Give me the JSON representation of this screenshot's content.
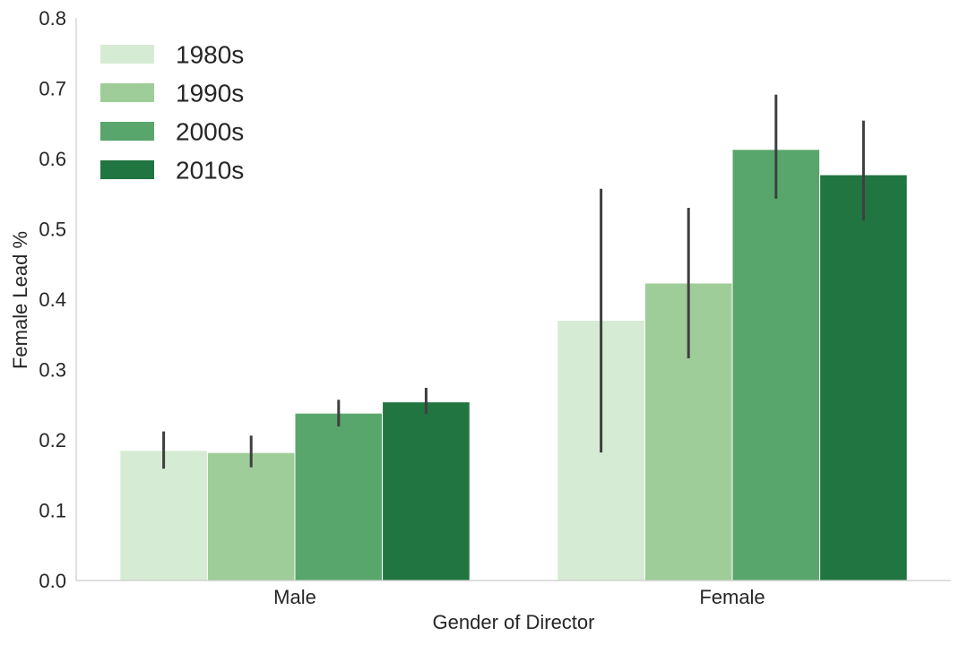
{
  "chart_data": {
    "type": "bar",
    "categories": [
      "Male",
      "Female"
    ],
    "series": [
      {
        "name": "1980s",
        "color": "#d6ebd3",
        "values": [
          0.185,
          0.37
        ],
        "ci": [
          [
            0.159,
            0.212
          ],
          [
            0.182,
            0.557
          ]
        ]
      },
      {
        "name": "1990s",
        "color": "#9fcd99",
        "values": [
          0.182,
          0.423
        ],
        "ci": [
          [
            0.161,
            0.206
          ],
          [
            0.316,
            0.53
          ]
        ]
      },
      {
        "name": "2000s",
        "color": "#58a66b",
        "values": [
          0.238,
          0.613
        ],
        "ci": [
          [
            0.219,
            0.257
          ],
          [
            0.543,
            0.691
          ]
        ]
      },
      {
        "name": "2010s",
        "color": "#217541",
        "values": [
          0.254,
          0.577
        ],
        "ci": [
          [
            0.237,
            0.274
          ],
          [
            0.512,
            0.654
          ]
        ]
      }
    ],
    "xlabel": "Gender of Director",
    "ylabel": "Female Lead %",
    "ylim": [
      0,
      0.8
    ],
    "yticks": [
      "0.0",
      "0.1",
      "0.2",
      "0.3",
      "0.4",
      "0.5",
      "0.6",
      "0.7",
      "0.8"
    ],
    "grid": false,
    "legend": "top-left"
  }
}
